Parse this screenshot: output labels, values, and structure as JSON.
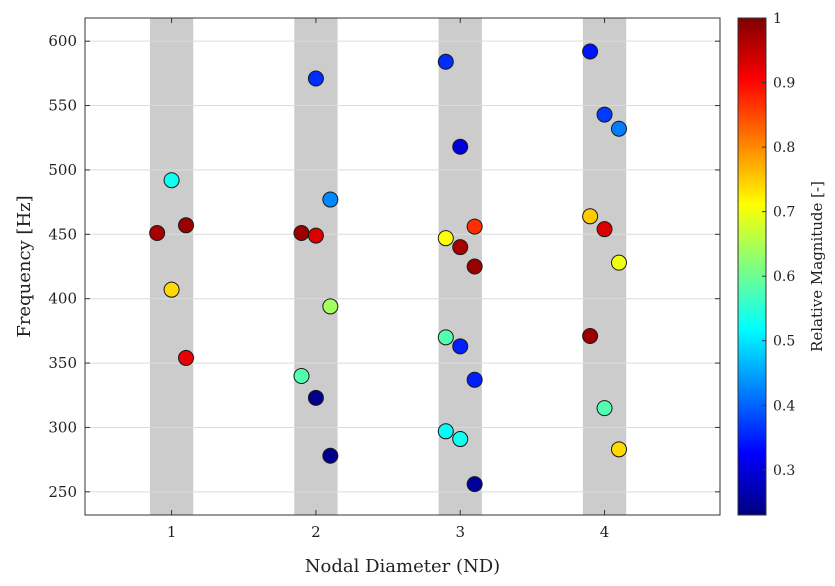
{
  "chart_data": {
    "type": "scatter",
    "title": "",
    "xlabel": "Nodal Diameter (ND)",
    "ylabel": "Frequency [Hz]",
    "xlim": [
      0.4,
      4.8
    ],
    "ylim": [
      232,
      618
    ],
    "x_ticks": [
      1,
      2,
      3,
      4
    ],
    "y_ticks": [
      250,
      300,
      350,
      400,
      450,
      500,
      550,
      600
    ],
    "grid": true,
    "shaded_bands": [
      {
        "x_from": 0.85,
        "x_to": 1.15
      },
      {
        "x_from": 1.85,
        "x_to": 2.15
      },
      {
        "x_from": 2.85,
        "x_to": 3.15
      },
      {
        "x_from": 3.85,
        "x_to": 4.15
      }
    ],
    "colorbar": {
      "label": "Relative Magnitude [-]",
      "min": 0.23,
      "max": 1.0,
      "ticks": [
        0.3,
        0.4,
        0.5,
        0.6,
        0.7,
        0.8,
        0.9,
        1
      ],
      "colormap": "jet"
    },
    "points": [
      {
        "x": 0.9,
        "y": 451,
        "magnitude": 0.97
      },
      {
        "x": 1.0,
        "y": 492,
        "magnitude": 0.53
      },
      {
        "x": 1.0,
        "y": 407,
        "magnitude": 0.74
      },
      {
        "x": 1.1,
        "y": 457,
        "magnitude": 0.98
      },
      {
        "x": 1.1,
        "y": 354,
        "magnitude": 0.92
      },
      {
        "x": 1.9,
        "y": 451,
        "magnitude": 0.98
      },
      {
        "x": 1.9,
        "y": 340,
        "magnitude": 0.58
      },
      {
        "x": 2.0,
        "y": 571,
        "magnitude": 0.36
      },
      {
        "x": 2.0,
        "y": 449,
        "magnitude": 0.93
      },
      {
        "x": 2.0,
        "y": 323,
        "magnitude": 0.24
      },
      {
        "x": 2.1,
        "y": 477,
        "magnitude": 0.43
      },
      {
        "x": 2.1,
        "y": 394,
        "magnitude": 0.64
      },
      {
        "x": 2.1,
        "y": 278,
        "magnitude": 0.24
      },
      {
        "x": 2.9,
        "y": 584,
        "magnitude": 0.36
      },
      {
        "x": 2.9,
        "y": 447,
        "magnitude": 0.71
      },
      {
        "x": 2.9,
        "y": 370,
        "magnitude": 0.58
      },
      {
        "x": 2.9,
        "y": 297,
        "magnitude": 0.52
      },
      {
        "x": 3.0,
        "y": 518,
        "magnitude": 0.3
      },
      {
        "x": 3.0,
        "y": 440,
        "magnitude": 0.97
      },
      {
        "x": 3.0,
        "y": 363,
        "magnitude": 0.35
      },
      {
        "x": 3.0,
        "y": 291,
        "magnitude": 0.53
      },
      {
        "x": 3.1,
        "y": 456,
        "magnitude": 0.87
      },
      {
        "x": 3.1,
        "y": 425,
        "magnitude": 0.98
      },
      {
        "x": 3.1,
        "y": 337,
        "magnitude": 0.35
      },
      {
        "x": 3.1,
        "y": 256,
        "magnitude": 0.25
      },
      {
        "x": 3.9,
        "y": 592,
        "magnitude": 0.34
      },
      {
        "x": 3.9,
        "y": 464,
        "magnitude": 0.75
      },
      {
        "x": 3.9,
        "y": 371,
        "magnitude": 0.98
      },
      {
        "x": 4.0,
        "y": 543,
        "magnitude": 0.37
      },
      {
        "x": 4.0,
        "y": 454,
        "magnitude": 0.93
      },
      {
        "x": 4.0,
        "y": 315,
        "magnitude": 0.58
      },
      {
        "x": 4.1,
        "y": 532,
        "magnitude": 0.42
      },
      {
        "x": 4.1,
        "y": 428,
        "magnitude": 0.7
      },
      {
        "x": 4.1,
        "y": 283,
        "magnitude": 0.74
      }
    ]
  }
}
